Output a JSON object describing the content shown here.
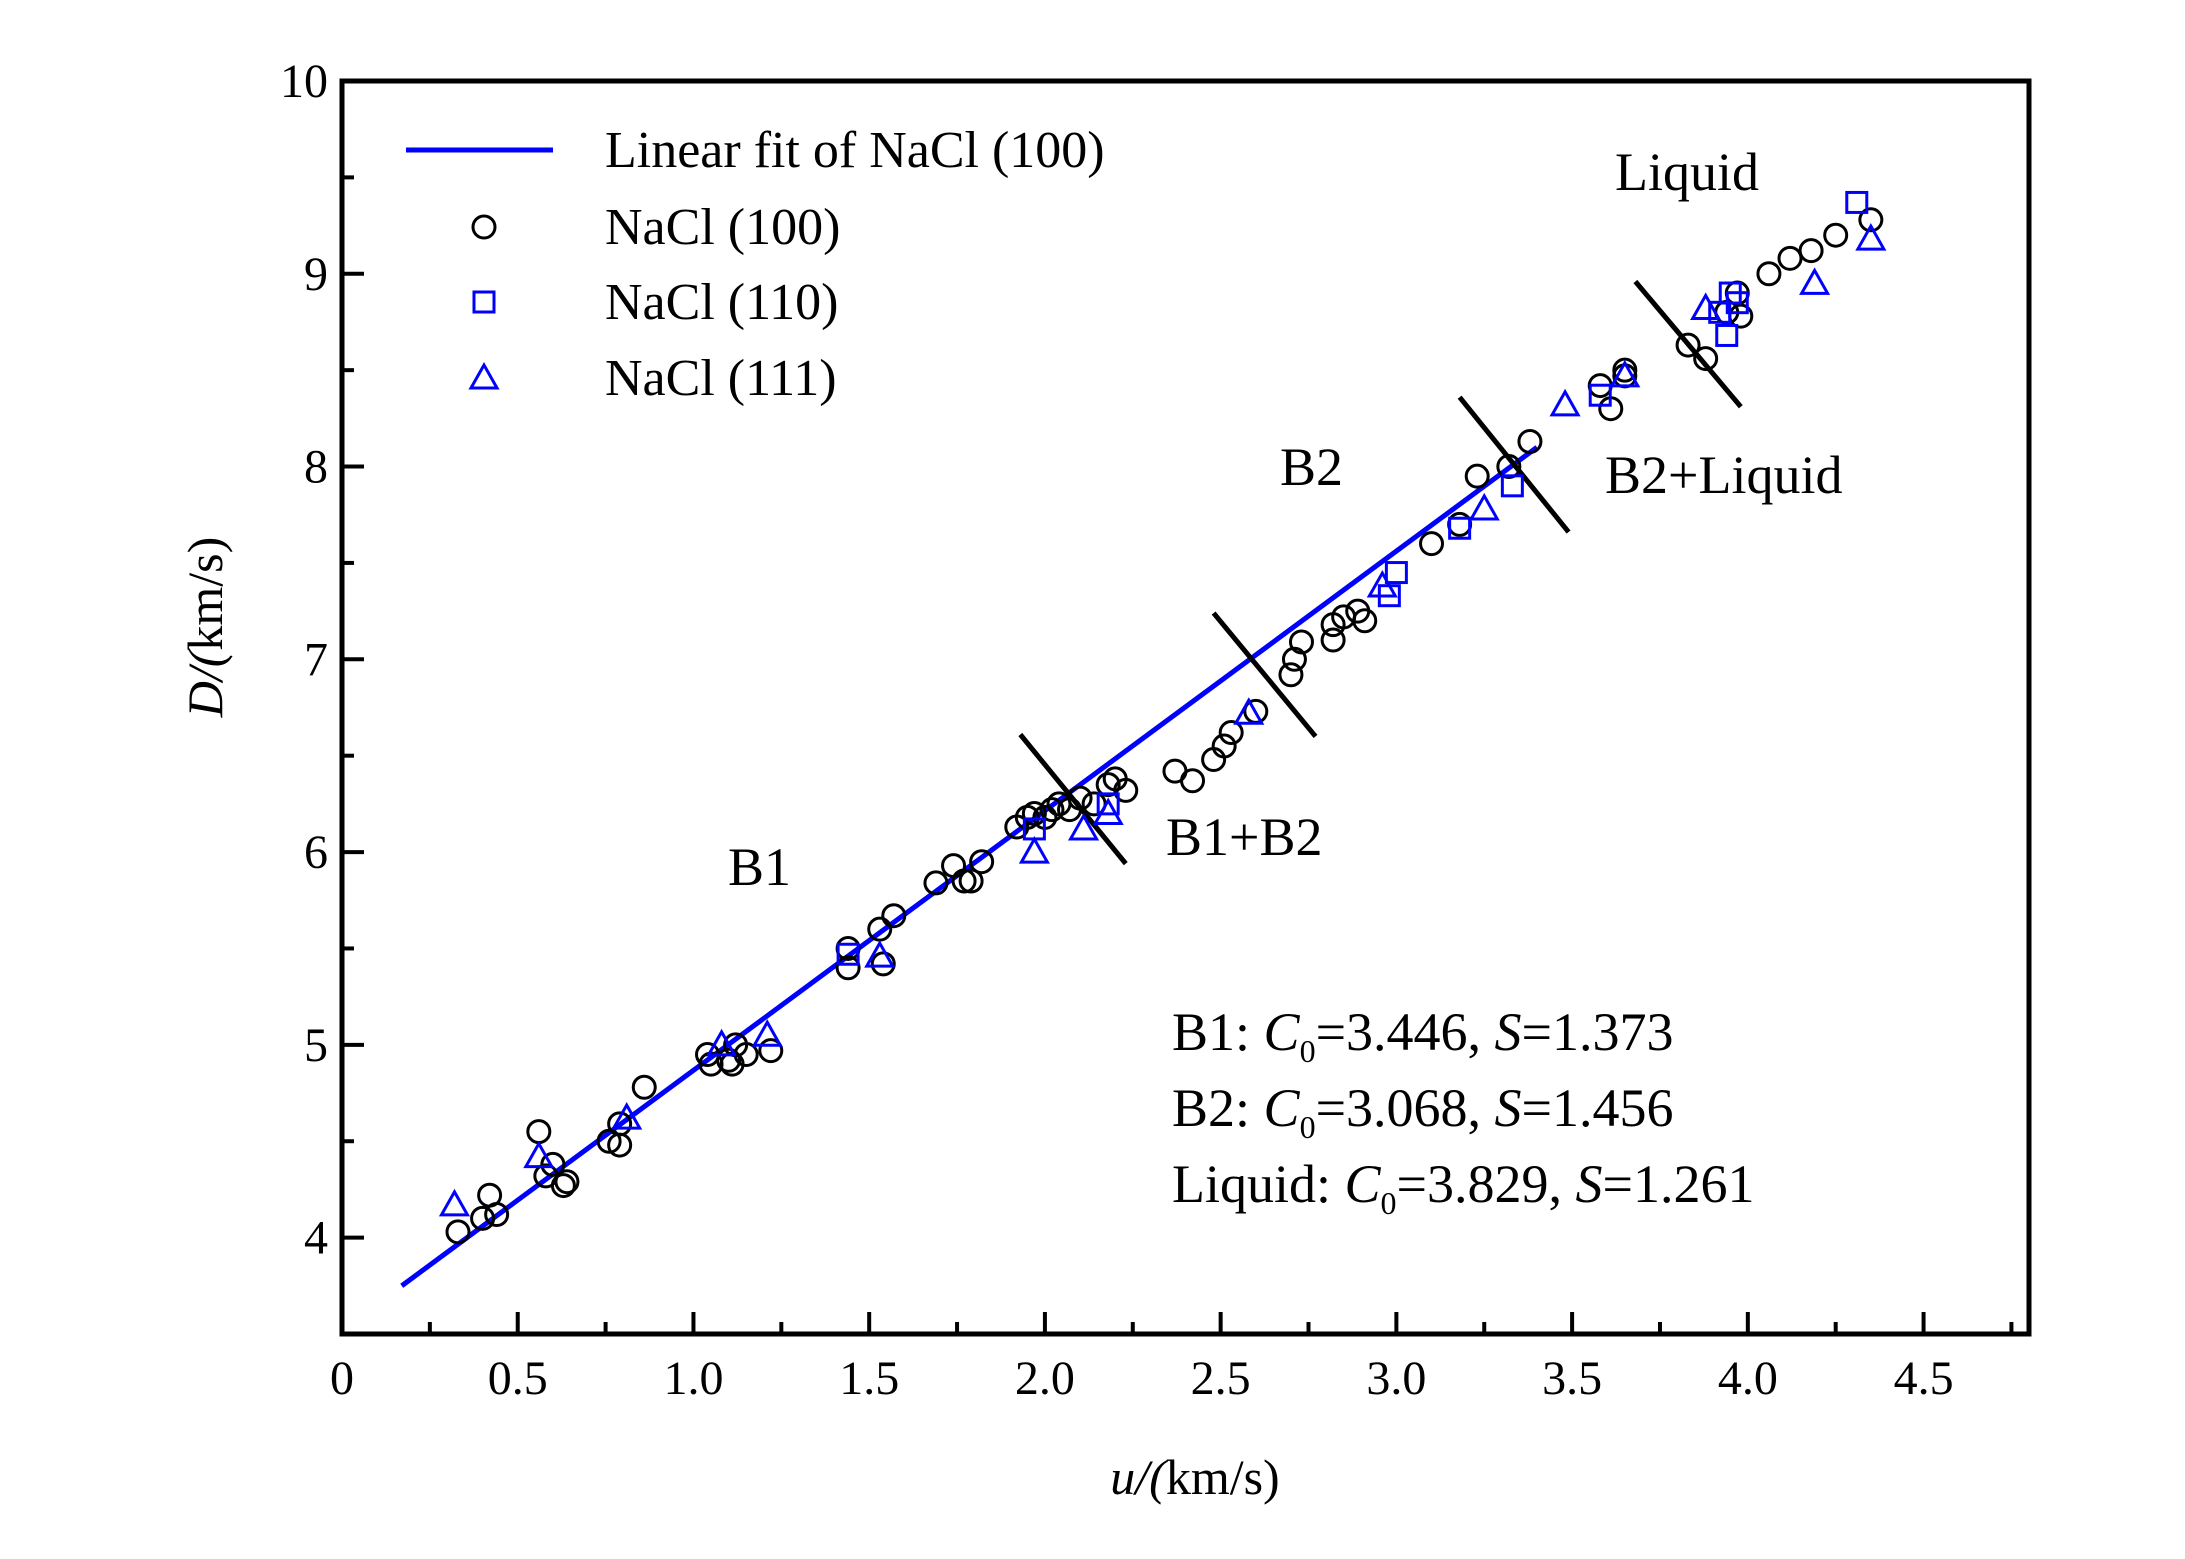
{
  "chart_data": {
    "type": "scatter",
    "title": "",
    "xlabel": "u/(km/s)",
    "ylabel": "D/(km/s)",
    "xlim": [
      0,
      4.8
    ],
    "ylim": [
      3.5,
      10
    ],
    "xticks": [
      "0",
      "0.5",
      "1.0",
      "1.5",
      "2.0",
      "2.5",
      "3.0",
      "3.5",
      "4.0",
      "4.5"
    ],
    "xtick_values": [
      0,
      0.5,
      1.0,
      1.5,
      2.0,
      2.5,
      3.0,
      3.5,
      4.0,
      4.5
    ],
    "yticks": [
      "4",
      "5",
      "6",
      "7",
      "8",
      "9",
      "10"
    ],
    "ytick_values": [
      4,
      5,
      6,
      7,
      8,
      9,
      10
    ],
    "grid": false,
    "legend_position": "top-left",
    "colors": {
      "fit": "#0000ff",
      "nacl100": "#000000",
      "nacl110": "#0000ff",
      "nacl111": "#0000ff",
      "boundary": "#000000"
    },
    "fit": {
      "name": "Linear fit of NaCl (100)",
      "x": [
        0.17,
        3.4
      ],
      "y": [
        3.75,
        8.1
      ]
    },
    "series": [
      {
        "name": "NaCl (100)",
        "marker": "circle",
        "x": [
          0.33,
          0.4,
          0.42,
          0.44,
          0.56,
          0.58,
          0.6,
          0.63,
          0.64,
          0.76,
          0.79,
          0.79,
          0.86,
          1.04,
          1.05,
          1.1,
          1.11,
          1.12,
          1.15,
          1.22,
          1.44,
          1.44,
          1.53,
          1.54,
          1.57,
          1.69,
          1.74,
          1.77,
          1.79,
          1.82,
          1.92,
          1.95,
          1.97,
          2.0,
          2.02,
          2.04,
          2.07,
          2.1,
          2.14,
          2.18,
          2.2,
          2.23,
          2.37,
          2.42,
          2.48,
          2.51,
          2.53,
          2.6,
          2.7,
          2.71,
          2.73,
          2.82,
          2.82,
          2.85,
          2.89,
          2.91,
          3.1,
          3.18,
          3.23,
          3.32,
          3.38,
          3.58,
          3.61,
          3.65,
          3.65,
          3.83,
          3.88,
          3.94,
          3.97,
          3.98,
          4.06,
          4.12,
          4.18,
          4.25,
          4.35
        ],
        "y": [
          4.03,
          4.1,
          4.22,
          4.12,
          4.55,
          4.32,
          4.38,
          4.27,
          4.29,
          4.5,
          4.59,
          4.48,
          4.78,
          4.95,
          4.9,
          4.92,
          4.9,
          5.0,
          4.95,
          4.97,
          5.4,
          5.5,
          5.6,
          5.42,
          5.67,
          5.84,
          5.93,
          5.85,
          5.85,
          5.95,
          6.13,
          6.18,
          6.2,
          6.18,
          6.22,
          6.25,
          6.22,
          6.28,
          6.25,
          6.35,
          6.38,
          6.32,
          6.42,
          6.37,
          6.48,
          6.55,
          6.62,
          6.73,
          6.92,
          7.0,
          7.09,
          7.1,
          7.18,
          7.22,
          7.25,
          7.2,
          7.6,
          7.7,
          7.95,
          8.0,
          8.13,
          8.42,
          8.3,
          8.5,
          8.47,
          8.63,
          8.56,
          8.8,
          8.9,
          8.78,
          9.0,
          9.08,
          9.12,
          9.2,
          9.28
        ]
      },
      {
        "name": "NaCl (110)",
        "marker": "square",
        "x": [
          1.44,
          1.97,
          2.18,
          2.98,
          3.0,
          3.18,
          3.33,
          3.58,
          3.92,
          3.94,
          3.95,
          3.97,
          4.31
        ],
        "y": [
          5.47,
          6.12,
          6.25,
          7.33,
          7.45,
          7.68,
          7.9,
          8.37,
          8.8,
          8.68,
          8.9,
          8.85,
          9.37
        ]
      },
      {
        "name": "NaCl (111)",
        "marker": "triangle",
        "x": [
          0.32,
          0.56,
          0.81,
          1.08,
          1.21,
          1.53,
          1.97,
          2.11,
          2.18,
          2.58,
          2.96,
          3.25,
          3.48,
          3.65,
          3.88,
          4.19,
          4.35
        ],
        "y": [
          4.17,
          4.42,
          4.62,
          5.0,
          5.05,
          5.46,
          6.0,
          6.12,
          6.2,
          6.72,
          7.38,
          7.78,
          8.32,
          8.47,
          8.82,
          8.95,
          9.18
        ]
      }
    ],
    "phase_boundaries": [
      {
        "x": [
          1.93,
          2.23
        ],
        "y": [
          6.61,
          5.94
        ]
      },
      {
        "x": [
          2.48,
          2.77
        ],
        "y": [
          7.24,
          6.6
        ]
      },
      {
        "x": [
          3.18,
          3.49
        ],
        "y": [
          8.36,
          7.66
        ]
      },
      {
        "x": [
          3.68,
          3.98
        ],
        "y": [
          8.96,
          8.31
        ]
      }
    ],
    "annotations": [
      "Liquid",
      "B2",
      "B1",
      "B1+B2",
      "B2+Liquid"
    ],
    "fit_params": [
      {
        "phase": "B1",
        "c_symbol": "C",
        "c_sub": "0",
        "c0": "3.446",
        "s_symbol": "S",
        "s": "1.373"
      },
      {
        "phase": "B2",
        "c_symbol": "C",
        "c_sub": "0",
        "c0": "3.068",
        "s_symbol": "S",
        "s": "1.456"
      },
      {
        "phase": "Liquid",
        "c_symbol": "C",
        "c_sub": "0",
        "c0": "3.829",
        "s_symbol": "S",
        "s": "1.261"
      }
    ]
  }
}
